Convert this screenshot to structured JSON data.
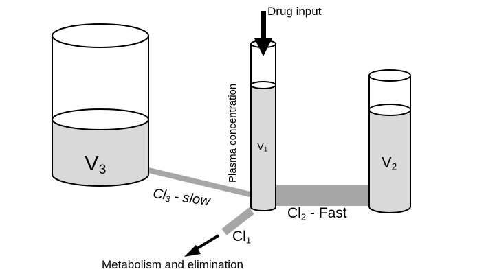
{
  "diagram": {
    "drug_input_label": "Drug input",
    "plasma_label": "Plasma concentration",
    "v3": {
      "base": "V",
      "sub": "3"
    },
    "v1": {
      "base": "V",
      "sub": "1"
    },
    "v2": {
      "base": "V",
      "sub": "2"
    },
    "cl3": {
      "base": "Cl",
      "sub": "3",
      "suffix": " - slow"
    },
    "cl2": {
      "base": "Cl",
      "sub": "2",
      "suffix": " - Fast"
    },
    "cl1": {
      "base": "Cl",
      "sub": "1"
    },
    "elimination_label": "Metabolism and elimination",
    "colors": {
      "liquid": "#d9d9d9",
      "pipe": "#a6a6a6",
      "outline": "#000000",
      "background": "#ffffff"
    }
  }
}
